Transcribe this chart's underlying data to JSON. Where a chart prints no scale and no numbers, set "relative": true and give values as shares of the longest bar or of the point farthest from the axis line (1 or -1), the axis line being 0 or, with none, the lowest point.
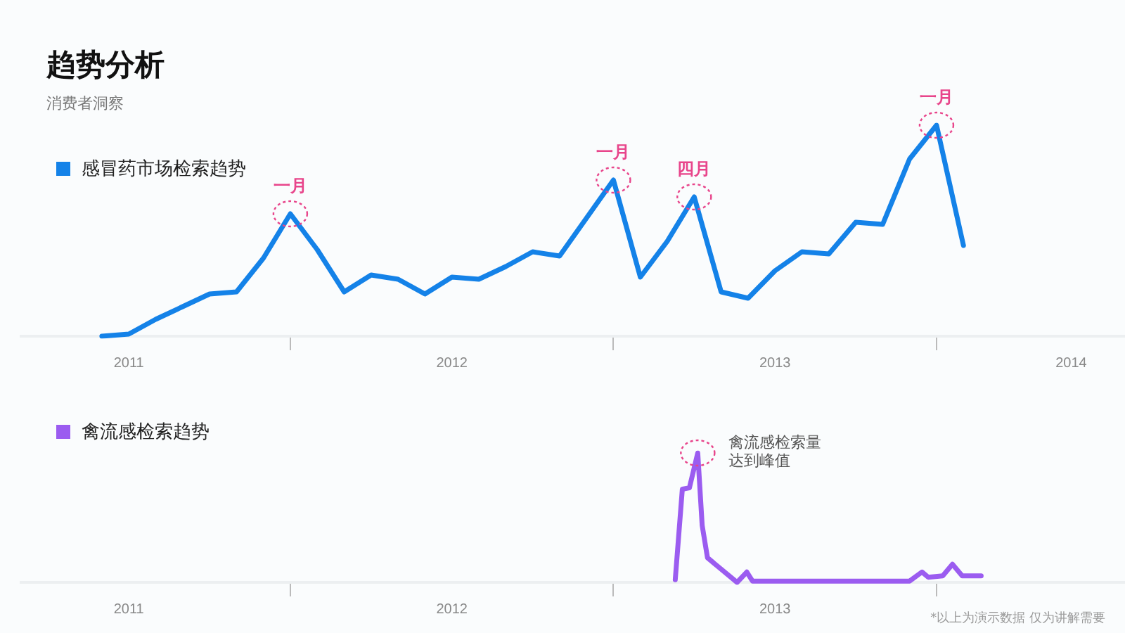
{
  "chart_data": [
    {
      "type": "line",
      "title": "趋势分析",
      "subtitle": "消费者洞察",
      "relative": true,
      "legend": "top left",
      "tick_labels": "x",
      "grid": false,
      "marker": "none",
      "xlim": [
        "2011-03",
        "2014-08"
      ],
      "xticks": [
        {
          "value": "2011-07",
          "label": "2011"
        },
        {
          "value": "2012-01",
          "label": null
        },
        {
          "value": "2012-07",
          "label": "2012"
        },
        {
          "value": "2013-01",
          "label": null
        },
        {
          "value": "2013-07",
          "label": "2013"
        },
        {
          "value": "2014-01",
          "label": null
        },
        {
          "value": "2014-06",
          "label": "2014"
        }
      ],
      "x": [
        "2011-06",
        "2011-07",
        "2011-08",
        "2011-09",
        "2011-10",
        "2011-11",
        "2011-12",
        "2012-01",
        "2012-02",
        "2012-03",
        "2012-04",
        "2012-05",
        "2012-06",
        "2012-07",
        "2012-08",
        "2012-09",
        "2012-10",
        "2012-11",
        "2012-12",
        "2013-01",
        "2013-02",
        "2013-03",
        "2013-04",
        "2013-05",
        "2013-06",
        "2013-07",
        "2013-08",
        "2013-09",
        "2013-10",
        "2013-11",
        "2013-12",
        "2014-01",
        "2014-02"
      ],
      "series": [
        {
          "name": "感冒药市场检索趋势",
          "color": "#1482e8",
          "values": [
            0,
            0.01,
            0.08,
            0.14,
            0.2,
            0.21,
            0.37,
            0.58,
            0.41,
            0.21,
            0.29,
            0.27,
            0.2,
            0.28,
            0.27,
            0.33,
            0.4,
            0.38,
            0.56,
            0.74,
            0.28,
            0.45,
            0.66,
            0.21,
            0.18,
            0.31,
            0.4,
            0.39,
            0.54,
            0.53,
            0.84,
            1,
            0.43
          ]
        }
      ],
      "annotations": [
        {
          "text": "一月",
          "x": "2012-01",
          "y": 0.58
        },
        {
          "text": "一月",
          "x": "2013-01",
          "y": 0.74
        },
        {
          "text": "四月",
          "x": "2013-04",
          "y": 0.66
        },
        {
          "text": "一月",
          "x": "2014-01",
          "y": 1
        }
      ]
    },
    {
      "type": "line",
      "relative": true,
      "legend": "top left",
      "tick_labels": "x",
      "grid": false,
      "marker": "none",
      "xlim": [
        "2011-03",
        "2014-08"
      ],
      "xticks": [
        {
          "value": "2011-07",
          "label": "2011"
        },
        {
          "value": "2012-01",
          "label": null
        },
        {
          "value": "2012-07",
          "label": "2012"
        },
        {
          "value": "2013-01",
          "label": null
        },
        {
          "value": "2013-07",
          "label": "2013"
        },
        {
          "value": "2014-01",
          "label": null
        }
      ],
      "x": [
        "2013-03-10",
        "2013-03-18",
        "2013-03-26",
        "2013-04-05",
        "2013-04-10",
        "2013-04-16",
        "2013-05-19",
        "2013-05-30",
        "2013-06-06",
        "2013-12-01",
        "2013-12-15",
        "2013-12-22",
        "2014-01-08",
        "2014-01-19",
        "2014-01-30",
        "2014-02-21"
      ],
      "series": [
        {
          "name": "禽流感检索趋势",
          "color": "#9b5cf0",
          "values": [
            0.02,
            0.72,
            0.73,
            1,
            0.44,
            0.19,
            0,
            0.08,
            0.01,
            0.01,
            0.08,
            0.04,
            0.05,
            0.14,
            0.05,
            0.05
          ]
        }
      ],
      "annotations": [
        {
          "text": "禽流感检索量达到峰值",
          "x": "2013-04-05",
          "y": 1
        },
        "*以上为演示数据 仅为讲解需要"
      ]
    }
  ]
}
